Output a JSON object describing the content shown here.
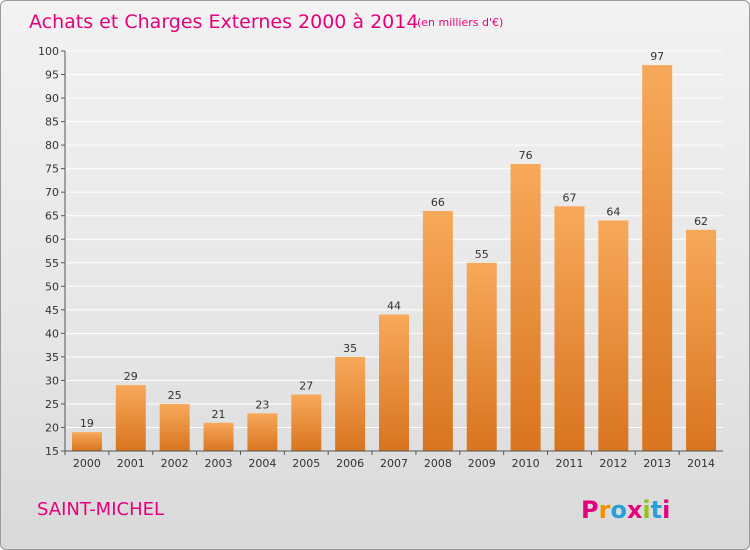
{
  "title": "Achats et Charges Externes 2000 à 2014",
  "subtitle": "(en milliers d'€)",
  "commune": "SAINT-MICHEL",
  "logo_text": "Proxiti",
  "colors": {
    "title": "#e6007e",
    "bar_light": "#f7a95a",
    "bar_dark": "#d9741f",
    "grid": "#ffffff",
    "logo": [
      "#e6007e",
      "#f39200",
      "#2a9fd6",
      "#e6007e",
      "#95c11f",
      "#2a9fd6",
      "#e6007e"
    ]
  },
  "chart_data": {
    "type": "bar",
    "title": "Achats et Charges Externes 2000 à 2014",
    "subtitle": "(en milliers d'€)",
    "categories": [
      "2000",
      "2001",
      "2002",
      "2003",
      "2004",
      "2005",
      "2006",
      "2007",
      "2008",
      "2009",
      "2010",
      "2011",
      "2012",
      "2013",
      "2014"
    ],
    "values": [
      19,
      29,
      25,
      21,
      23,
      27,
      35,
      44,
      66,
      55,
      76,
      67,
      64,
      97,
      62
    ],
    "xlabel": "",
    "ylabel": "",
    "ylim": [
      15,
      100
    ],
    "yticks": [
      15,
      20,
      25,
      30,
      35,
      40,
      45,
      50,
      55,
      60,
      65,
      70,
      75,
      80,
      85,
      90,
      95,
      100
    ],
    "grid": true,
    "data_labels": true
  }
}
